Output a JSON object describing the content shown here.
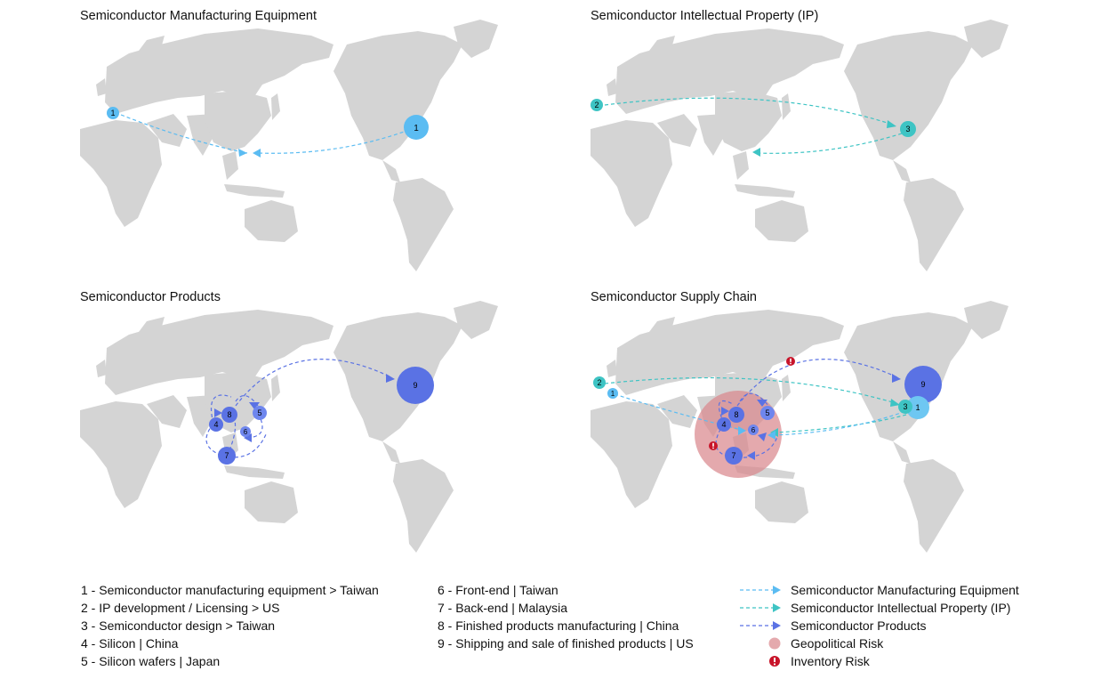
{
  "panels": [
    {
      "id": "p1",
      "title": "Semiconductor Manufacturing Equipment"
    },
    {
      "id": "p2",
      "title": "Semiconductor Intellectual Property (IP)"
    },
    {
      "id": "p3",
      "title": "Semiconductor Products"
    },
    {
      "id": "p4",
      "title": "Semiconductor Supply Chain"
    }
  ],
  "steps": [
    {
      "num": "1",
      "text": "1 - Semiconductor manufacturing equipment > Taiwan"
    },
    {
      "num": "2",
      "text": "2 - IP development / Licensing > US"
    },
    {
      "num": "3",
      "text": "3 - Semiconductor design > Taiwan"
    },
    {
      "num": "4",
      "text": "4 - Silicon | China"
    },
    {
      "num": "5",
      "text": "5 - Silicon wafers | Japan"
    },
    {
      "num": "6",
      "text": "6 - Front-end | Taiwan"
    },
    {
      "num": "7",
      "text": "7 - Back-end | Malaysia"
    },
    {
      "num": "8",
      "text": "8 - Finished products manufacturing | China"
    },
    {
      "num": "9",
      "text": "9 - Shipping and sale of finished products | US"
    }
  ],
  "legend": {
    "equipment": "Semiconductor Manufacturing Equipment",
    "ip": "Semiconductor Intellectual Property (IP)",
    "products": "Semiconductor Products",
    "geopolitical": "Geopolitical Risk",
    "inventory": "Inventory Risk"
  },
  "colors": {
    "land": "#d4d4d4",
    "equipment": "#5bbcf2",
    "ip": "#3ec4c4",
    "products": "#5a72e4",
    "geopolitical": "#d9888e",
    "inventory": "#c8142a"
  },
  "icons": {
    "inventory": "exclamation-icon"
  }
}
